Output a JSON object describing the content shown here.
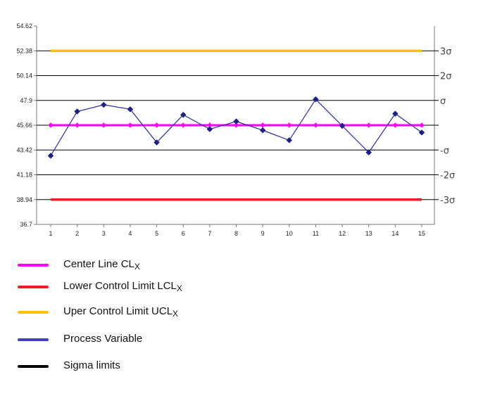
{
  "chart_data": {
    "type": "line",
    "title": "",
    "xlabel": "",
    "ylabel": "",
    "ylim": [
      36.7,
      54.62
    ],
    "xlim": [
      1,
      15
    ],
    "grid": false,
    "y_ticks": [
      36.7,
      38.94,
      41.18,
      43.42,
      45.66,
      47.9,
      50.14,
      52.38,
      54.62
    ],
    "y_tick_labels": [
      "36.7",
      "38.94",
      "41.18",
      "43.42",
      "45.66",
      "47.9",
      "50.14",
      "52.38",
      "54.62"
    ],
    "x_tick_labels": [
      "1",
      "2",
      "3",
      "4",
      "5",
      "6",
      "7",
      "8",
      "9",
      "10",
      "11",
      "12",
      "13",
      "14",
      "15"
    ],
    "series": [
      {
        "name": "Process Variable",
        "color": "#1f1f8c",
        "marker": "diamond",
        "x": [
          1,
          2,
          3,
          4,
          5,
          6,
          7,
          8,
          9,
          10,
          11,
          12,
          13,
          14,
          15
        ],
        "values": [
          42.9,
          46.9,
          47.5,
          47.1,
          44.1,
          46.6,
          45.3,
          46.0,
          45.2,
          44.3,
          48.0,
          45.6,
          43.2,
          46.7,
          45.0
        ]
      },
      {
        "name": "Center Line",
        "color": "#ff00ff",
        "marker": "diamond",
        "x": [
          1,
          2,
          3,
          4,
          5,
          6,
          7,
          8,
          9,
          10,
          11,
          12,
          13,
          14,
          15
        ],
        "values": [
          45.66,
          45.66,
          45.66,
          45.66,
          45.66,
          45.66,
          45.66,
          45.66,
          45.66,
          45.66,
          45.66,
          45.66,
          45.66,
          45.66,
          45.66
        ]
      },
      {
        "name": "Lower Control Limit",
        "color": "#ee1c24",
        "marker": "none",
        "x": [
          1,
          15
        ],
        "values": [
          38.94,
          38.94
        ]
      },
      {
        "name": "Uper Control Limit",
        "color": "#ffc000",
        "marker": "none",
        "x": [
          1,
          15
        ],
        "values": [
          52.38,
          52.38
        ]
      }
    ],
    "sigma_labels": [
      {
        "label": "3σ",
        "y": 52.38
      },
      {
        "label": "2σ",
        "y": 50.14
      },
      {
        "label": "σ",
        "y": 47.9
      },
      {
        "label": "",
        "y": 45.66
      },
      {
        "label": "-σ",
        "y": 43.42
      },
      {
        "label": "-2σ",
        "y": 41.18
      },
      {
        "label": "-3σ",
        "y": 38.94
      }
    ]
  },
  "legend": [
    {
      "key": "center",
      "color": "#ff00ff",
      "label": "Center Line  CL",
      "sub": "X"
    },
    {
      "key": "lcl",
      "color": "#ee1c24",
      "label": "Lower Control Limit  LCL",
      "sub": "X"
    },
    {
      "key": "ucl",
      "color": "#ffc000",
      "label": "Uper Control Limit  UCL",
      "sub": "X"
    },
    {
      "key": "process",
      "color": "#4040c0",
      "label": "Process Variable",
      "sub": ""
    },
    {
      "key": "sigma",
      "color": "#000000",
      "label": "Sigma limits",
      "sub": ""
    }
  ]
}
